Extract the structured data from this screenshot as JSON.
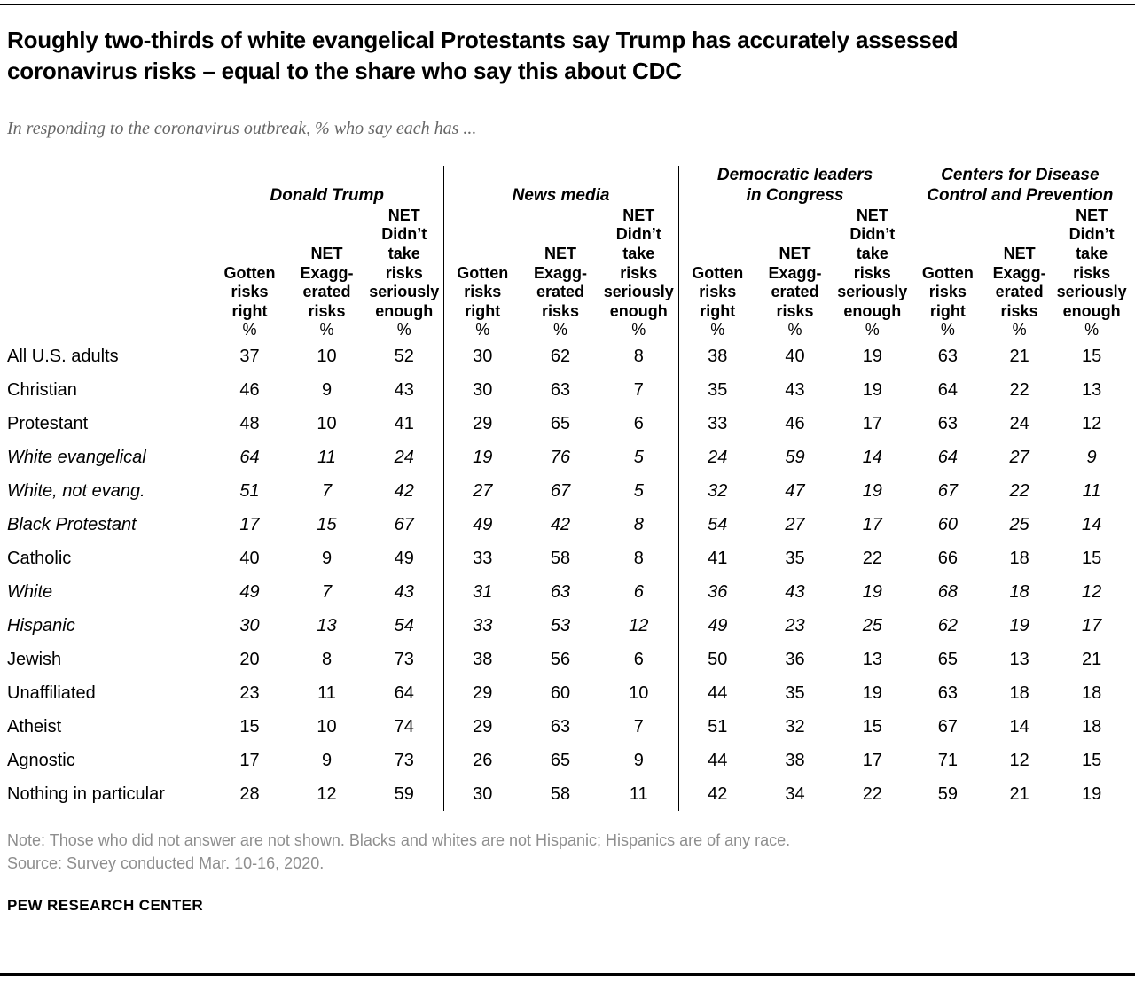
{
  "header": {
    "title": "Roughly two-thirds of white evangelical Protestants say Trump has accurately assessed coronavirus risks – equal to the share who say this about CDC",
    "subtitle": "In responding to the coronavirus outbreak, % who say each has ..."
  },
  "chart_data": {
    "type": "table",
    "title": "Roughly two-thirds of white evangelical Protestants say Trump has accurately assessed coronavirus risks – equal to the share who say this about CDC",
    "subtitle": "In responding to the coronavirus outbreak, % who say each has ...",
    "unit": "%",
    "column_groups": [
      {
        "label": "Donald Trump",
        "display": "Donald Trump"
      },
      {
        "label": "News media",
        "display": "News media"
      },
      {
        "label": "Democratic leaders in Congress",
        "display": "Democratic leaders\nin Congress"
      },
      {
        "label": "Centers for Disease Control and Prevention",
        "display": "Centers for Disease\nControl and Prevention"
      }
    ],
    "columns": [
      {
        "label": "Gotten risks right",
        "display": "Gotten\nrisks\nright"
      },
      {
        "label": "NET Exaggerated risks",
        "display": "NET\nExagg-\nerated\nrisks"
      },
      {
        "label": "NET Didn't take risks seriously enough",
        "display": "NET\nDidn’t\ntake\nrisks\nseriously\nenough"
      }
    ],
    "rows": [
      {
        "label": "All U.S. adults",
        "indent": 0,
        "italic": false,
        "values": [
          37,
          10,
          52,
          30,
          62,
          8,
          38,
          40,
          19,
          63,
          21,
          15
        ]
      },
      {
        "label": "Christian",
        "indent": 0,
        "italic": false,
        "values": [
          46,
          9,
          43,
          30,
          63,
          7,
          35,
          43,
          19,
          64,
          22,
          13
        ]
      },
      {
        "label": "Protestant",
        "indent": 1,
        "italic": false,
        "values": [
          48,
          10,
          41,
          29,
          65,
          6,
          33,
          46,
          17,
          63,
          24,
          12
        ]
      },
      {
        "label": "White evangelical",
        "indent": 2,
        "italic": true,
        "values": [
          64,
          11,
          24,
          19,
          76,
          5,
          24,
          59,
          14,
          64,
          27,
          9
        ]
      },
      {
        "label": "White, not evang.",
        "indent": 2,
        "italic": true,
        "values": [
          51,
          7,
          42,
          27,
          67,
          5,
          32,
          47,
          19,
          67,
          22,
          11
        ]
      },
      {
        "label": "Black Protestant",
        "indent": 2,
        "italic": true,
        "values": [
          17,
          15,
          67,
          49,
          42,
          8,
          54,
          27,
          17,
          60,
          25,
          14
        ]
      },
      {
        "label": "Catholic",
        "indent": 1,
        "italic": false,
        "values": [
          40,
          9,
          49,
          33,
          58,
          8,
          41,
          35,
          22,
          66,
          18,
          15
        ]
      },
      {
        "label": "White",
        "indent": 2,
        "italic": true,
        "values": [
          49,
          7,
          43,
          31,
          63,
          6,
          36,
          43,
          19,
          68,
          18,
          12
        ]
      },
      {
        "label": "Hispanic",
        "indent": 2,
        "italic": true,
        "values": [
          30,
          13,
          54,
          33,
          53,
          12,
          49,
          23,
          25,
          62,
          19,
          17
        ]
      },
      {
        "label": "Jewish",
        "indent": 0,
        "italic": false,
        "values": [
          20,
          8,
          73,
          38,
          56,
          6,
          50,
          36,
          13,
          65,
          13,
          21
        ]
      },
      {
        "label": "Unaffiliated",
        "indent": 0,
        "italic": false,
        "values": [
          23,
          11,
          64,
          29,
          60,
          10,
          44,
          35,
          19,
          63,
          18,
          18
        ]
      },
      {
        "label": "Atheist",
        "indent": 1,
        "italic": false,
        "values": [
          15,
          10,
          74,
          29,
          63,
          7,
          51,
          32,
          15,
          67,
          14,
          18
        ]
      },
      {
        "label": "Agnostic",
        "indent": 1,
        "italic": false,
        "values": [
          17,
          9,
          73,
          26,
          65,
          9,
          44,
          38,
          17,
          71,
          12,
          15
        ]
      },
      {
        "label": "Nothing in particular",
        "indent": 1,
        "italic": false,
        "values": [
          28,
          12,
          59,
          30,
          58,
          11,
          42,
          34,
          22,
          59,
          21,
          19
        ]
      }
    ]
  },
  "footer": {
    "note": "Note: Those who did not answer are not shown. Blacks and whites are not Hispanic; Hispanics are of any race.",
    "source": "Source: Survey conducted Mar. 10-16, 2020.",
    "brand": "PEW RESEARCH CENTER"
  }
}
